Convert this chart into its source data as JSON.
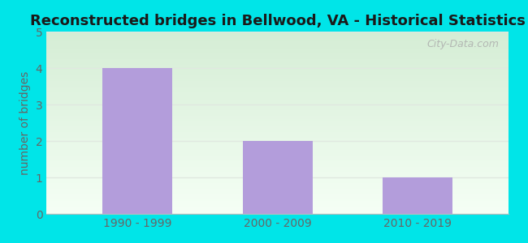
{
  "title": "Reconstructed bridges in Bellwood, VA - Historical Statistics",
  "categories": [
    "1990 - 1999",
    "2000 - 2009",
    "2010 - 2019"
  ],
  "values": [
    4,
    2,
    1
  ],
  "bar_color": "#b39ddb",
  "ylabel": "number of bridges",
  "ylim": [
    0,
    5
  ],
  "yticks": [
    0,
    1,
    2,
    3,
    4,
    5
  ],
  "title_fontsize": 13,
  "label_fontsize": 10,
  "tick_fontsize": 10,
  "outer_bg_color": "#00e5e8",
  "plot_bg_top_color": "#d6edd6",
  "plot_bg_bottom_color": "#f5fff5",
  "axis_label_color": "#666666",
  "tick_label_color": "#666666",
  "title_color": "#1a1a1a",
  "watermark_text": "City-Data.com",
  "watermark_color": "#aaaaaa",
  "grid_color": "#e0e8e0",
  "bar_width": 0.5
}
